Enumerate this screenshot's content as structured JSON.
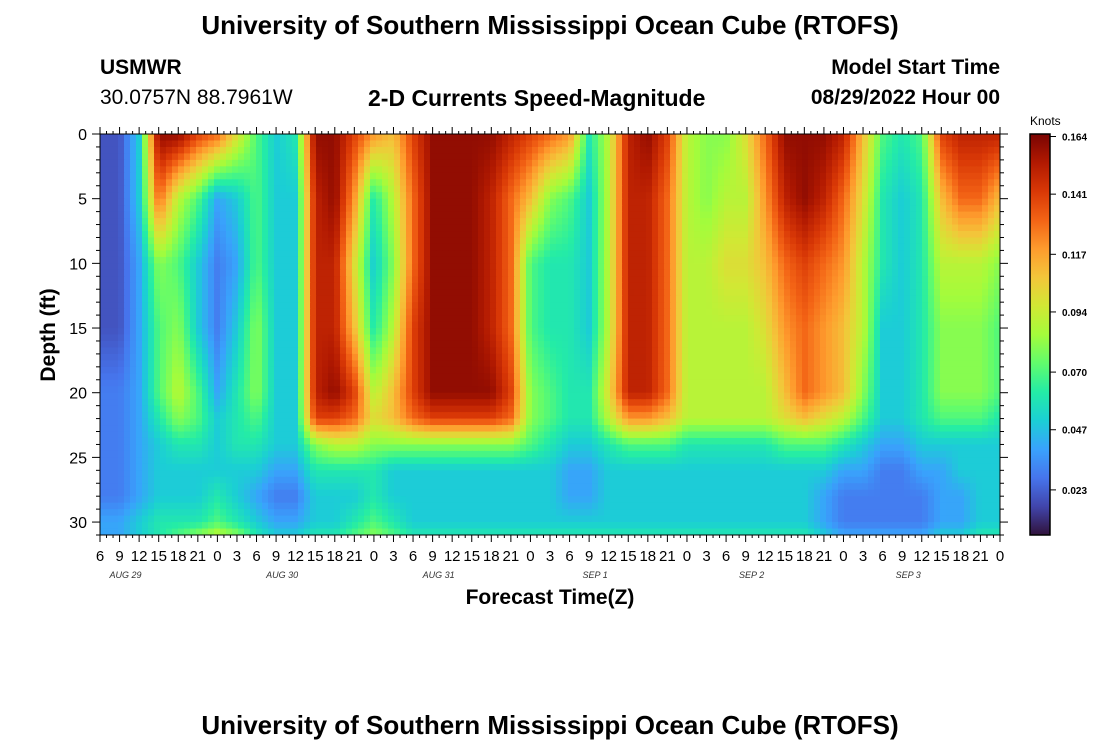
{
  "header": {
    "title": "University of Southern Mississippi Ocean Cube (RTOFS)",
    "station_id": "USMWR",
    "station_coords": "30.0757N  88.7961W",
    "subtitle": "2-D Currents Speed-Magnitude",
    "model_start_label": "Model Start Time",
    "model_start_value": "08/29/2022 Hour 00"
  },
  "footer": {
    "title": "University of Southern Mississippi Ocean Cube (RTOFS)"
  },
  "colors": {
    "colormap": [
      "#30123b",
      "#4145ab",
      "#4675ed",
      "#39a2fc",
      "#1bcfd4",
      "#24eca6",
      "#61fc6c",
      "#a4fc3b",
      "#d1e834",
      "#f3c63a",
      "#fe9b2d",
      "#f36315",
      "#d93806",
      "#b11901",
      "#7a0402"
    ]
  },
  "chart_data": {
    "type": "heatmap",
    "xlabel": "Forecast Time(Z)",
    "ylabel": "Depth (ft)",
    "colorbar_label": "Knots",
    "x_range_hours": [
      6,
      144
    ],
    "ylim": [
      0,
      31
    ],
    "y_ticks": [
      "0",
      "5",
      "10",
      "15",
      "20",
      "25",
      "30"
    ],
    "x_tick_labels": [
      "6",
      "9",
      "12",
      "15",
      "18",
      "21",
      "0",
      "3",
      "6",
      "9",
      "12",
      "15",
      "18",
      "21",
      "0",
      "3",
      "6",
      "9",
      "12",
      "15",
      "18",
      "21",
      "0",
      "3",
      "6",
      "9",
      "12",
      "15",
      "18",
      "21",
      "0",
      "3",
      "6",
      "9",
      "12",
      "15",
      "18",
      "21",
      "0",
      "3",
      "6",
      "9",
      "12",
      "15",
      "18",
      "21",
      "0"
    ],
    "x_dates": [
      {
        "label": "AUG 29",
        "hour": 9
      },
      {
        "label": "AUG 30",
        "hour": 33
      },
      {
        "label": "AUG 31",
        "hour": 57
      },
      {
        "label": "SEP 1",
        "hour": 81
      },
      {
        "label": "SEP 2",
        "hour": 105
      },
      {
        "label": "SEP 3",
        "hour": 129
      }
    ],
    "colorbar_ticks": [
      "0.164",
      "0.141",
      "0.117",
      "0.094",
      "0.070",
      "0.047",
      "0.023"
    ],
    "colorbar_values": [
      0.164,
      0.141,
      0.117,
      0.094,
      0.07,
      0.047,
      0.023
    ],
    "value_range": [
      0.005,
      0.165
    ],
    "depth_rows_ft": [
      0,
      5,
      10,
      15,
      20,
      22,
      24,
      26,
      28,
      30,
      31
    ],
    "time_cols_hours": [
      6,
      9,
      12,
      15,
      18,
      21,
      24,
      27,
      30,
      33,
      36,
      39,
      42,
      45,
      48,
      51,
      54,
      57,
      60,
      63,
      66,
      69,
      72,
      75,
      78,
      81,
      84,
      87,
      90,
      93,
      96,
      99,
      102,
      105,
      108,
      111,
      114,
      117,
      120,
      123,
      126,
      129,
      132,
      135,
      138,
      141,
      144
    ],
    "speed_knots": [
      [
        0.02,
        0.02,
        0.05,
        0.16,
        0.16,
        0.14,
        0.13,
        0.1,
        0.07,
        0.05,
        0.06,
        0.16,
        0.16,
        0.14,
        0.12,
        0.11,
        0.14,
        0.16,
        0.16,
        0.16,
        0.16,
        0.15,
        0.14,
        0.13,
        0.12,
        0.06,
        0.09,
        0.15,
        0.16,
        0.14,
        0.09,
        0.08,
        0.08,
        0.1,
        0.13,
        0.16,
        0.16,
        0.16,
        0.15,
        0.11,
        0.07,
        0.06,
        0.07,
        0.14,
        0.15,
        0.15,
        0.15
      ],
      [
        0.02,
        0.02,
        0.05,
        0.13,
        0.09,
        0.07,
        0.04,
        0.05,
        0.07,
        0.05,
        0.05,
        0.15,
        0.16,
        0.12,
        0.06,
        0.09,
        0.13,
        0.16,
        0.16,
        0.16,
        0.15,
        0.13,
        0.11,
        0.08,
        0.07,
        0.05,
        0.09,
        0.15,
        0.15,
        0.13,
        0.09,
        0.08,
        0.09,
        0.09,
        0.12,
        0.15,
        0.16,
        0.15,
        0.13,
        0.1,
        0.06,
        0.05,
        0.06,
        0.11,
        0.13,
        0.13,
        0.11
      ],
      [
        0.02,
        0.02,
        0.04,
        0.08,
        0.07,
        0.05,
        0.03,
        0.04,
        0.07,
        0.05,
        0.05,
        0.15,
        0.15,
        0.1,
        0.05,
        0.08,
        0.13,
        0.16,
        0.16,
        0.16,
        0.15,
        0.13,
        0.07,
        0.06,
        0.06,
        0.05,
        0.09,
        0.15,
        0.15,
        0.13,
        0.09,
        0.09,
        0.1,
        0.1,
        0.11,
        0.13,
        0.14,
        0.13,
        0.12,
        0.09,
        0.06,
        0.05,
        0.06,
        0.09,
        0.09,
        0.09,
        0.08
      ],
      [
        0.02,
        0.02,
        0.04,
        0.07,
        0.08,
        0.05,
        0.03,
        0.05,
        0.08,
        0.05,
        0.05,
        0.15,
        0.15,
        0.11,
        0.06,
        0.09,
        0.14,
        0.16,
        0.16,
        0.16,
        0.15,
        0.13,
        0.07,
        0.06,
        0.06,
        0.05,
        0.09,
        0.15,
        0.15,
        0.13,
        0.09,
        0.09,
        0.09,
        0.09,
        0.1,
        0.12,
        0.13,
        0.12,
        0.11,
        0.09,
        0.05,
        0.05,
        0.06,
        0.08,
        0.08,
        0.08,
        0.07
      ],
      [
        0.03,
        0.03,
        0.04,
        0.07,
        0.09,
        0.07,
        0.04,
        0.06,
        0.08,
        0.05,
        0.05,
        0.15,
        0.16,
        0.14,
        0.09,
        0.11,
        0.14,
        0.16,
        0.16,
        0.16,
        0.16,
        0.14,
        0.08,
        0.07,
        0.06,
        0.06,
        0.1,
        0.15,
        0.15,
        0.13,
        0.09,
        0.09,
        0.09,
        0.09,
        0.09,
        0.11,
        0.13,
        0.12,
        0.11,
        0.08,
        0.05,
        0.05,
        0.06,
        0.08,
        0.08,
        0.08,
        0.07
      ],
      [
        0.03,
        0.03,
        0.04,
        0.06,
        0.08,
        0.07,
        0.05,
        0.06,
        0.07,
        0.05,
        0.05,
        0.14,
        0.14,
        0.13,
        0.1,
        0.11,
        0.13,
        0.14,
        0.14,
        0.14,
        0.14,
        0.13,
        0.08,
        0.07,
        0.06,
        0.06,
        0.09,
        0.12,
        0.12,
        0.11,
        0.09,
        0.09,
        0.09,
        0.09,
        0.09,
        0.1,
        0.11,
        0.1,
        0.09,
        0.07,
        0.05,
        0.05,
        0.06,
        0.07,
        0.07,
        0.07,
        0.06
      ],
      [
        0.03,
        0.03,
        0.04,
        0.05,
        0.06,
        0.06,
        0.05,
        0.06,
        0.06,
        0.05,
        0.05,
        0.08,
        0.09,
        0.09,
        0.08,
        0.08,
        0.08,
        0.08,
        0.08,
        0.08,
        0.08,
        0.08,
        0.07,
        0.06,
        0.05,
        0.05,
        0.06,
        0.07,
        0.07,
        0.07,
        0.06,
        0.06,
        0.06,
        0.06,
        0.06,
        0.07,
        0.07,
        0.07,
        0.06,
        0.05,
        0.04,
        0.04,
        0.05,
        0.05,
        0.05,
        0.05,
        0.05
      ],
      [
        0.03,
        0.03,
        0.04,
        0.05,
        0.05,
        0.05,
        0.05,
        0.05,
        0.05,
        0.04,
        0.04,
        0.06,
        0.06,
        0.06,
        0.06,
        0.05,
        0.05,
        0.05,
        0.05,
        0.05,
        0.05,
        0.05,
        0.05,
        0.05,
        0.04,
        0.04,
        0.05,
        0.05,
        0.05,
        0.05,
        0.05,
        0.05,
        0.05,
        0.05,
        0.05,
        0.05,
        0.05,
        0.05,
        0.04,
        0.04,
        0.03,
        0.03,
        0.04,
        0.04,
        0.05,
        0.05,
        0.05
      ],
      [
        0.03,
        0.03,
        0.04,
        0.05,
        0.05,
        0.05,
        0.06,
        0.05,
        0.04,
        0.03,
        0.03,
        0.05,
        0.05,
        0.05,
        0.06,
        0.05,
        0.05,
        0.05,
        0.05,
        0.05,
        0.05,
        0.05,
        0.05,
        0.05,
        0.04,
        0.04,
        0.05,
        0.05,
        0.05,
        0.05,
        0.05,
        0.05,
        0.05,
        0.05,
        0.05,
        0.05,
        0.05,
        0.04,
        0.03,
        0.03,
        0.03,
        0.03,
        0.03,
        0.04,
        0.04,
        0.05,
        0.05
      ],
      [
        0.04,
        0.04,
        0.05,
        0.06,
        0.06,
        0.06,
        0.07,
        0.06,
        0.05,
        0.04,
        0.04,
        0.05,
        0.05,
        0.06,
        0.07,
        0.06,
        0.05,
        0.05,
        0.05,
        0.05,
        0.05,
        0.05,
        0.05,
        0.05,
        0.05,
        0.05,
        0.05,
        0.05,
        0.05,
        0.05,
        0.05,
        0.05,
        0.05,
        0.05,
        0.05,
        0.05,
        0.05,
        0.04,
        0.03,
        0.03,
        0.03,
        0.03,
        0.03,
        0.04,
        0.04,
        0.05,
        0.05
      ],
      [
        0.04,
        0.04,
        0.05,
        0.06,
        0.07,
        0.08,
        0.09,
        0.08,
        0.06,
        0.05,
        0.05,
        0.06,
        0.06,
        0.07,
        0.08,
        0.07,
        0.06,
        0.06,
        0.06,
        0.06,
        0.06,
        0.06,
        0.06,
        0.06,
        0.06,
        0.06,
        0.06,
        0.06,
        0.06,
        0.06,
        0.06,
        0.06,
        0.06,
        0.06,
        0.06,
        0.06,
        0.06,
        0.05,
        0.04,
        0.04,
        0.04,
        0.04,
        0.04,
        0.05,
        0.05,
        0.06,
        0.06
      ]
    ]
  }
}
